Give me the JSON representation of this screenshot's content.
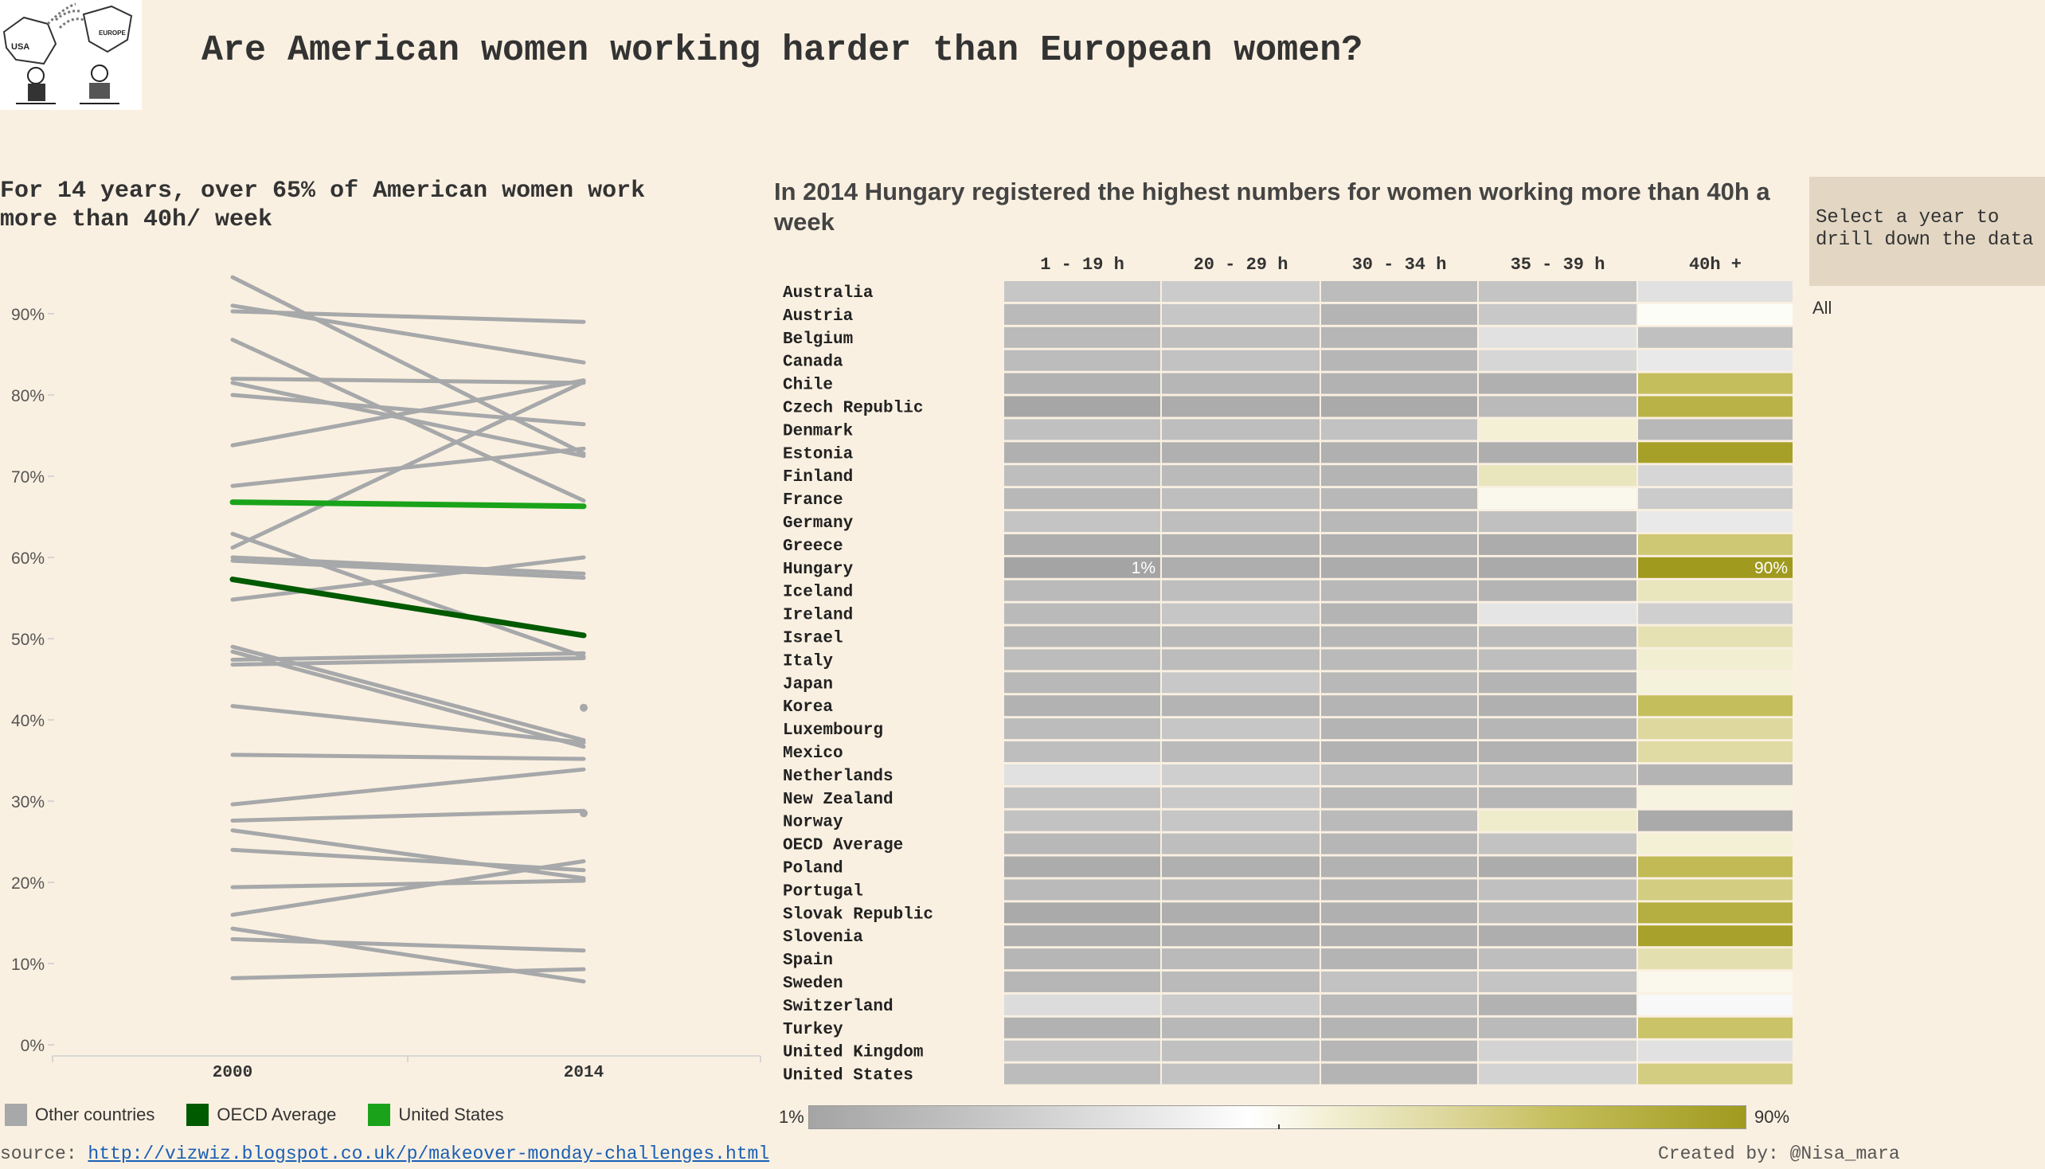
{
  "header": {
    "title": "Are American women working harder than European women?",
    "logo_labels": [
      "USA",
      "EUROPE"
    ]
  },
  "left_panel": {
    "title": "For 14 years, over 65% of American women work more than 40h/ week"
  },
  "right_panel": {
    "title": "In 2014 Hungary registered the highest numbers for women working more than 40h a week"
  },
  "filter": {
    "prompt": "Select a year to drill down the data",
    "value": "All"
  },
  "colors": {
    "other_countries": "#a6a8aa",
    "oecd_average": "#005a00",
    "united_states": "#1aa31a",
    "background": "#faf0e1"
  },
  "legend": {
    "items": [
      {
        "label": "Other countries",
        "color": "#a6a8aa"
      },
      {
        "label": "OECD Average",
        "color": "#005a00"
      },
      {
        "label": "United States",
        "color": "#1aa31a"
      }
    ],
    "color_min_label": "1%",
    "color_max_label": "90%"
  },
  "chart_data": [
    {
      "type": "line",
      "title": "For 14 years, over 65% of American women work more than 40h/ week",
      "x": [
        "2000",
        "2014"
      ],
      "y_ticks": [
        "0%",
        "10%",
        "20%",
        "30%",
        "40%",
        "50%",
        "60%",
        "70%",
        "80%",
        "90%"
      ],
      "ylim": [
        0,
        97
      ],
      "grid": false,
      "legend_position": "bottom",
      "series": [
        {
          "name": "United States",
          "values": [
            66.8,
            66.3
          ]
        },
        {
          "name": "OECD Average",
          "values": [
            57.3,
            50.4
          ]
        },
        {
          "values": [
            94.5,
            72.8
          ]
        },
        {
          "values": [
            91.0,
            84.0
          ]
        },
        {
          "values": [
            90.3,
            89.0
          ]
        },
        {
          "values": [
            86.8,
            67.0
          ]
        },
        {
          "values": [
            82.0,
            81.5
          ]
        },
        {
          "values": [
            81.5,
            72.5
          ]
        },
        {
          "values": [
            80.0,
            76.4
          ]
        },
        {
          "values": [
            73.8,
            81.8
          ]
        },
        {
          "values": [
            68.8,
            73.4
          ]
        },
        {
          "values": [
            62.9,
            47.8
          ]
        },
        {
          "values": [
            61.2,
            81.6
          ]
        },
        {
          "values": [
            60.0,
            58.0
          ]
        },
        {
          "values": [
            59.6,
            57.5
          ]
        },
        {
          "values": [
            54.8,
            60.0
          ]
        },
        {
          "values": [
            49.0,
            37.5
          ]
        },
        {
          "values": [
            48.4,
            36.7
          ]
        },
        {
          "values": [
            47.4,
            48.2
          ]
        },
        {
          "values": [
            46.8,
            47.6
          ]
        },
        {
          "values": [
            41.7,
            37.2
          ]
        },
        {
          "values": [
            35.7,
            35.2
          ]
        },
        {
          "values": [
            29.6,
            33.9
          ]
        },
        {
          "values": [
            27.6,
            28.8
          ]
        },
        {
          "values": [
            26.4,
            20.5
          ]
        },
        {
          "values": [
            24.0,
            21.5
          ]
        },
        {
          "values": [
            19.4,
            20.2
          ]
        },
        {
          "values": [
            16.0,
            22.6
          ]
        },
        {
          "values": [
            14.3,
            7.8
          ]
        },
        {
          "values": [
            13.0,
            11.6
          ]
        },
        {
          "values": [
            8.2,
            9.3
          ]
        },
        {
          "values": [
            null,
            41.5
          ]
        },
        {
          "values": [
            null,
            28.5
          ]
        }
      ]
    },
    {
      "type": "heatmap",
      "title": "In 2014 Hungary registered the highest numbers for women working more than 40h a week",
      "columns": [
        "1 - 19 h",
        "20 -  29 h",
        "30 - 34 h",
        "35 - 39 h",
        "40h +"
      ],
      "rows": [
        "Australia",
        "Austria",
        "Belgium",
        "Canada",
        "Chile",
        "Czech Republic",
        "Denmark",
        "Estonia",
        "Finland",
        "France",
        "Germany",
        "Greece",
        "Hungary",
        "Iceland",
        "Ireland",
        "Israel",
        "Italy",
        "Japan",
        "Korea",
        "Luxembourg",
        "Mexico",
        "Netherlands",
        "New Zealand",
        "Norway",
        "OECD Average",
        "Poland",
        "Portugal",
        "Slovak Republic",
        "Slovenia",
        "Spain",
        "Sweden",
        "Switzerland",
        "Turkey",
        "United Kingdom",
        "United States"
      ],
      "color_range": [
        1,
        90
      ],
      "values": [
        [
          18,
          20,
          13,
          17,
          30
        ],
        [
          12,
          18,
          9,
          19,
          44
        ],
        [
          12,
          14,
          10,
          30,
          15
        ],
        [
          13,
          16,
          10,
          25,
          34
        ],
        [
          8,
          10,
          8,
          7,
          72
        ],
        [
          2,
          5,
          4,
          12,
          78
        ],
        [
          15,
          14,
          16,
          50,
          11
        ],
        [
          7,
          7,
          7,
          6,
          87
        ],
        [
          14,
          12,
          9,
          55,
          25
        ],
        [
          11,
          14,
          11,
          46,
          20
        ],
        [
          17,
          14,
          11,
          15,
          34
        ],
        [
          6,
          8,
          7,
          5,
          68
        ],
        [
          1,
          6,
          5,
          4,
          90
        ],
        [
          12,
          14,
          11,
          9,
          55
        ],
        [
          12,
          18,
          9,
          32,
          22
        ],
        [
          10,
          11,
          10,
          12,
          57
        ],
        [
          13,
          13,
          12,
          14,
          51
        ],
        [
          11,
          19,
          11,
          9,
          49
        ],
        [
          8,
          9,
          9,
          7,
          72
        ],
        [
          13,
          18,
          9,
          10,
          61
        ],
        [
          14,
          12,
          8,
          8,
          60
        ],
        [
          30,
          22,
          15,
          14,
          9
        ],
        [
          16,
          19,
          11,
          10,
          48
        ],
        [
          16,
          18,
          12,
          52,
          4
        ],
        [
          11,
          14,
          10,
          16,
          50
        ],
        [
          5,
          7,
          8,
          5,
          74
        ],
        [
          12,
          12,
          9,
          15,
          66
        ],
        [
          4,
          6,
          7,
          12,
          80
        ],
        [
          6,
          7,
          7,
          6,
          86
        ],
        [
          10,
          12,
          9,
          14,
          58
        ],
        [
          10,
          12,
          16,
          17,
          46
        ],
        [
          28,
          20,
          12,
          8,
          40
        ],
        [
          8,
          11,
          9,
          12,
          70
        ],
        [
          18,
          15,
          10,
          24,
          30
        ],
        [
          13,
          16,
          9,
          24,
          66
        ]
      ],
      "annotations": [
        {
          "row": "Hungary",
          "column": "1 - 19 h",
          "label": "1%"
        },
        {
          "row": "Hungary",
          "column": "40h +",
          "label": "90%"
        }
      ]
    }
  ],
  "footer": {
    "source_label": "source: ",
    "source_url": "http://vizwiz.blogspot.co.uk/p/makeover-monday-challenges.html",
    "credit": "Created by: @Nisa_mara"
  }
}
